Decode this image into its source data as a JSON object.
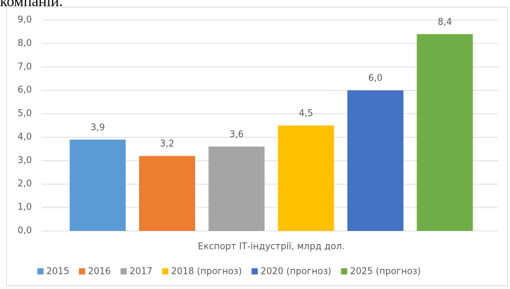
{
  "caption": "компаній.",
  "chart_data": {
    "type": "bar",
    "categories": [
      "Експорт ІТ-індустрії, млрд дол."
    ],
    "series": [
      {
        "name": "2015",
        "color": "#5b9bd5",
        "values": [
          3.9
        ],
        "value_labels": [
          "3,9"
        ]
      },
      {
        "name": "2016",
        "color": "#ed7d31",
        "values": [
          3.2
        ],
        "value_labels": [
          "3,2"
        ]
      },
      {
        "name": "2017",
        "color": "#a5a5a5",
        "values": [
          3.6
        ],
        "value_labels": [
          "3,6"
        ]
      },
      {
        "name": "2018 (прогноз)",
        "color": "#ffc000",
        "values": [
          4.5
        ],
        "value_labels": [
          "4,5"
        ]
      },
      {
        "name": "2020 (прогноз)",
        "color": "#4472c4",
        "values": [
          6.0
        ],
        "value_labels": [
          "6,0"
        ]
      },
      {
        "name": "2025 (прогноз)",
        "color": "#70ad47",
        "values": [
          8.4
        ],
        "value_labels": [
          "8,4"
        ]
      }
    ],
    "ylim": [
      0,
      9
    ],
    "yticks": [
      {
        "value": 0,
        "label": "0,0"
      },
      {
        "value": 1,
        "label": "1,0"
      },
      {
        "value": 2,
        "label": "2,0"
      },
      {
        "value": 3,
        "label": "3,0"
      },
      {
        "value": 4,
        "label": "4,0"
      },
      {
        "value": 5,
        "label": "5,0"
      },
      {
        "value": 6,
        "label": "6,0"
      },
      {
        "value": 7,
        "label": "7,0"
      },
      {
        "value": 8,
        "label": "8,0"
      },
      {
        "value": 9,
        "label": "9,0"
      }
    ],
    "grid": true,
    "legend": "bottom"
  }
}
